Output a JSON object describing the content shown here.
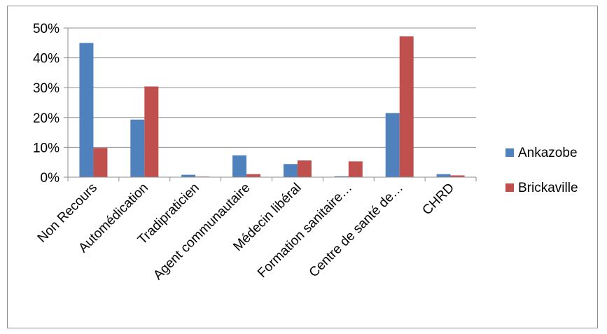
{
  "chart_data": {
    "type": "bar",
    "categories": [
      "Non Recours",
      "Automédication",
      "Tradipraticien",
      "Agent communautaire",
      "Médecin libéral",
      "Formation sanitaire…",
      "Centre de santé de…",
      "CHRD"
    ],
    "series": [
      {
        "name": "Ankazobe",
        "color": "#4f81bd",
        "values": [
          45,
          19.3,
          0.8,
          7.3,
          4.4,
          0.3,
          21.5,
          1.0
        ]
      },
      {
        "name": "Brickaville",
        "color": "#c0504d",
        "values": [
          9.8,
          30.4,
          0.2,
          1.0,
          5.6,
          5.3,
          47.2,
          0.6
        ]
      }
    ],
    "yticks": [
      "0%",
      "10%",
      "20%",
      "30%",
      "40%",
      "50%"
    ],
    "ylim": [
      0,
      50
    ],
    "grid": true,
    "legend": "right"
  }
}
